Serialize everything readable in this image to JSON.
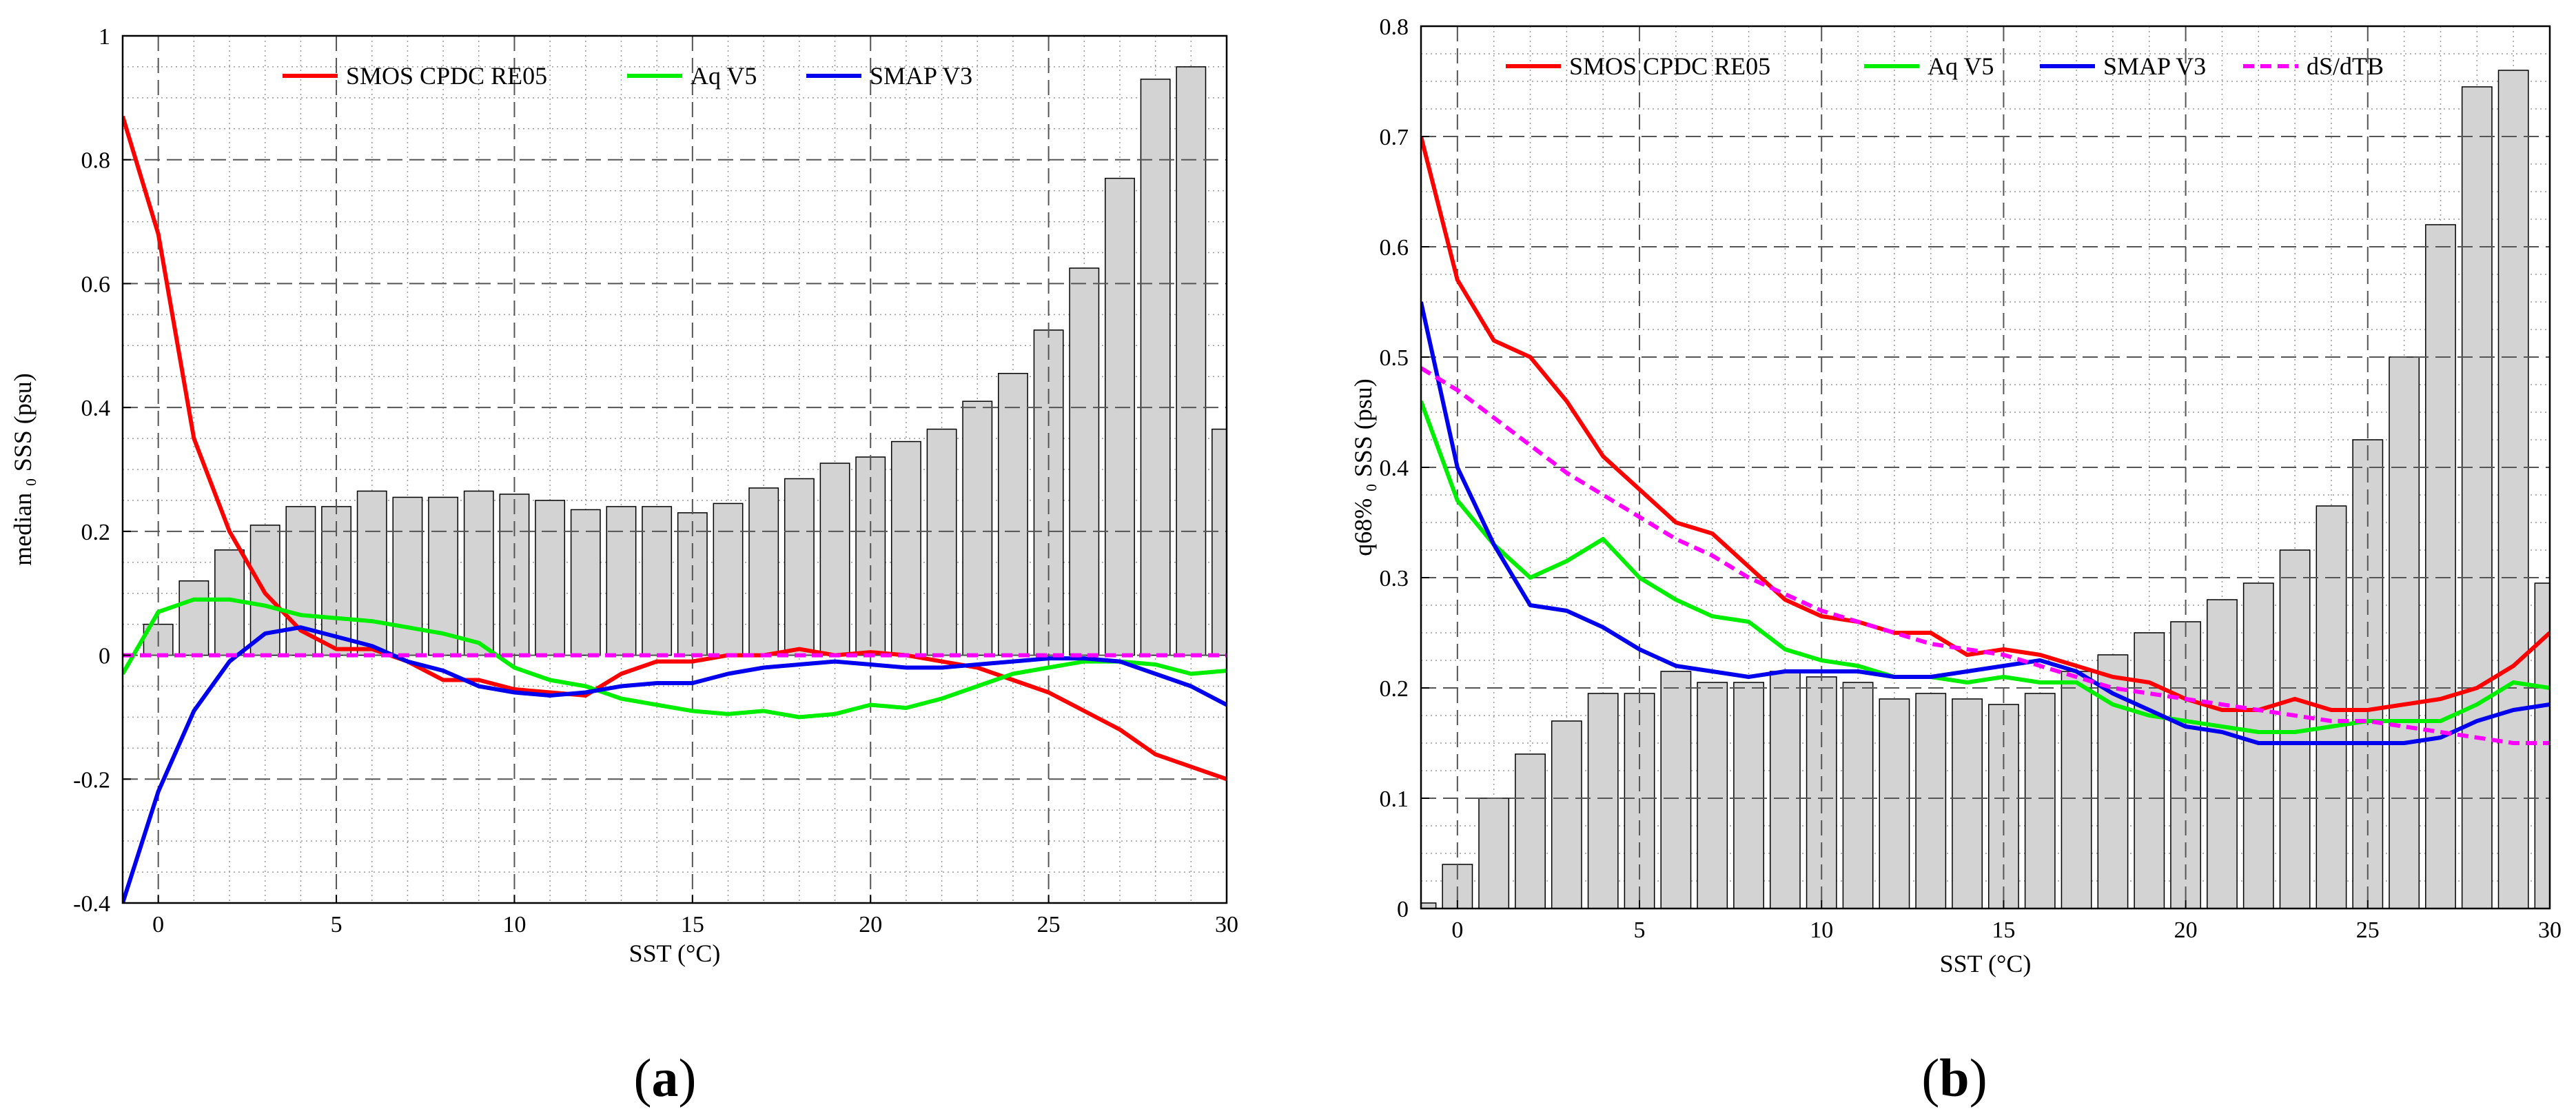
{
  "chart_data": [
    {
      "id": "a",
      "type": "bar+line",
      "panel_label": "(a)",
      "xlabel": "SST (°C)",
      "ylabel": "median ₀ SSS (psu)",
      "xlim": [
        -1,
        30
      ],
      "ylim": [
        -0.4,
        1.0
      ],
      "xticks": [
        0,
        5,
        10,
        15,
        20,
        25,
        30
      ],
      "yticks": [
        -0.4,
        -0.2,
        0,
        0.2,
        0.4,
        0.6,
        0.8,
        1
      ],
      "ytick_labels": [
        "-0.4",
        "-0.2",
        "0",
        "0.2",
        "0.4",
        "0.6",
        "0.8",
        "1"
      ],
      "legend": [
        "SMOS CPDC RE05",
        "Aq V5",
        "SMAP V3"
      ],
      "bars": {
        "x": [
          0,
          1,
          2,
          3,
          4,
          5,
          6,
          7,
          8,
          9,
          10,
          11,
          12,
          13,
          14,
          15,
          16,
          17,
          18,
          19,
          20,
          21,
          22,
          23,
          24,
          25,
          26,
          27,
          28,
          29,
          30
        ],
        "values": [
          0.05,
          0.12,
          0.17,
          0.21,
          0.24,
          0.24,
          0.265,
          0.255,
          0.255,
          0.265,
          0.26,
          0.25,
          0.235,
          0.24,
          0.24,
          0.23,
          0.245,
          0.27,
          0.285,
          0.31,
          0.32,
          0.345,
          0.365,
          0.41,
          0.455,
          0.525,
          0.625,
          0.77,
          0.93,
          0.95,
          0.365
        ]
      },
      "series": [
        {
          "name": "SMOS CPDC RE05",
          "color": "#ff0000",
          "x": [
            -1,
            0,
            1,
            2,
            3,
            4,
            5,
            6,
            7,
            8,
            9,
            10,
            11,
            12,
            13,
            14,
            15,
            16,
            17,
            18,
            19,
            20,
            21,
            22,
            23,
            24,
            25,
            26,
            27,
            28,
            29,
            30
          ],
          "values": [
            0.87,
            0.68,
            0.35,
            0.2,
            0.1,
            0.04,
            0.01,
            0.01,
            -0.01,
            -0.04,
            -0.04,
            -0.055,
            -0.06,
            -0.065,
            -0.03,
            -0.01,
            -0.01,
            0.0,
            0.0,
            0.01,
            0.0,
            0.005,
            0.0,
            -0.01,
            -0.02,
            -0.04,
            -0.06,
            -0.09,
            -0.12,
            -0.16,
            -0.18,
            -0.2
          ]
        },
        {
          "name": "Aq V5",
          "color": "#00ee00",
          "x": [
            -1,
            0,
            1,
            2,
            3,
            4,
            5,
            6,
            7,
            8,
            9,
            10,
            11,
            12,
            13,
            14,
            15,
            16,
            17,
            18,
            19,
            20,
            21,
            22,
            23,
            24,
            25,
            26,
            27,
            28,
            29,
            30
          ],
          "values": [
            -0.03,
            0.07,
            0.09,
            0.09,
            0.08,
            0.065,
            0.06,
            0.055,
            0.045,
            0.035,
            0.02,
            -0.02,
            -0.04,
            -0.05,
            -0.07,
            -0.08,
            -0.09,
            -0.095,
            -0.09,
            -0.1,
            -0.095,
            -0.08,
            -0.085,
            -0.07,
            -0.05,
            -0.03,
            -0.02,
            -0.01,
            -0.01,
            -0.015,
            -0.03,
            -0.025
          ]
        },
        {
          "name": "SMAP V3",
          "color": "#0000ee",
          "x": [
            -1,
            0,
            1,
            2,
            3,
            4,
            5,
            6,
            7,
            8,
            9,
            10,
            11,
            12,
            13,
            14,
            15,
            16,
            17,
            18,
            19,
            20,
            21,
            22,
            23,
            24,
            25,
            26,
            27,
            28,
            29,
            30
          ],
          "values": [
            -0.4,
            -0.22,
            -0.09,
            -0.01,
            0.035,
            0.045,
            0.03,
            0.015,
            -0.01,
            -0.025,
            -0.05,
            -0.06,
            -0.065,
            -0.06,
            -0.05,
            -0.045,
            -0.045,
            -0.03,
            -0.02,
            -0.015,
            -0.01,
            -0.015,
            -0.02,
            -0.02,
            -0.015,
            -0.01,
            -0.005,
            -0.005,
            -0.01,
            -0.03,
            -0.05,
            -0.08
          ]
        },
        {
          "name": "zero",
          "color": "#ff00ff",
          "dashed": true,
          "legend": false,
          "x": [
            -1,
            30
          ],
          "values": [
            0,
            0
          ]
        }
      ]
    },
    {
      "id": "b",
      "type": "bar+line",
      "panel_label": "(b)",
      "xlabel": "SST (°C)",
      "ylabel": "q68% ₀ SSS (psu)",
      "xlim": [
        -1,
        30
      ],
      "ylim": [
        0,
        0.8
      ],
      "xticks": [
        0,
        5,
        10,
        15,
        20,
        25,
        30
      ],
      "yticks": [
        0,
        0.1,
        0.2,
        0.3,
        0.4,
        0.5,
        0.6,
        0.7,
        0.8
      ],
      "ytick_labels": [
        "0",
        "0.1",
        "0.2",
        "0.3",
        "0.4",
        "0.5",
        "0.6",
        "0.7",
        "0.8"
      ],
      "legend": [
        "SMOS CPDC RE05",
        "Aq V5",
        "SMAP V3",
        "dS/dTB"
      ],
      "bars": {
        "x": [
          -1,
          0,
          1,
          2,
          3,
          4,
          5,
          6,
          7,
          8,
          9,
          10,
          11,
          12,
          13,
          14,
          15,
          16,
          17,
          18,
          19,
          20,
          21,
          22,
          23,
          24,
          25,
          26,
          27,
          28,
          29,
          30
        ],
        "values": [
          0.005,
          0.04,
          0.1,
          0.14,
          0.17,
          0.195,
          0.195,
          0.215,
          0.205,
          0.205,
          0.215,
          0.21,
          0.205,
          0.19,
          0.195,
          0.19,
          0.185,
          0.195,
          0.215,
          0.23,
          0.25,
          0.26,
          0.28,
          0.295,
          0.325,
          0.365,
          0.425,
          0.5,
          0.62,
          0.745,
          0.76,
          0.295
        ]
      },
      "series": [
        {
          "name": "SMOS CPDC RE05",
          "color": "#ff0000",
          "x": [
            -1,
            0,
            1,
            2,
            3,
            4,
            5,
            6,
            7,
            8,
            9,
            10,
            11,
            12,
            13,
            14,
            15,
            16,
            17,
            18,
            19,
            20,
            21,
            22,
            23,
            24,
            25,
            26,
            27,
            28,
            29,
            30
          ],
          "values": [
            0.7,
            0.57,
            0.515,
            0.5,
            0.46,
            0.41,
            0.38,
            0.35,
            0.34,
            0.31,
            0.28,
            0.265,
            0.26,
            0.25,
            0.25,
            0.23,
            0.235,
            0.23,
            0.22,
            0.21,
            0.205,
            0.19,
            0.18,
            0.18,
            0.19,
            0.18,
            0.18,
            0.185,
            0.19,
            0.2,
            0.22,
            0.25
          ]
        },
        {
          "name": "Aq V5",
          "color": "#00ee00",
          "x": [
            -1,
            0,
            1,
            2,
            3,
            4,
            5,
            6,
            7,
            8,
            9,
            10,
            11,
            12,
            13,
            14,
            15,
            16,
            17,
            18,
            19,
            20,
            21,
            22,
            23,
            24,
            25,
            26,
            27,
            28,
            29,
            30
          ],
          "values": [
            0.46,
            0.37,
            0.33,
            0.3,
            0.315,
            0.335,
            0.3,
            0.28,
            0.265,
            0.26,
            0.235,
            0.225,
            0.22,
            0.21,
            0.21,
            0.205,
            0.21,
            0.205,
            0.205,
            0.185,
            0.175,
            0.17,
            0.165,
            0.16,
            0.16,
            0.165,
            0.17,
            0.17,
            0.17,
            0.185,
            0.205,
            0.2
          ]
        },
        {
          "name": "SMAP V3",
          "color": "#0000ee",
          "x": [
            -1,
            0,
            1,
            2,
            3,
            4,
            5,
            6,
            7,
            8,
            9,
            10,
            11,
            12,
            13,
            14,
            15,
            16,
            17,
            18,
            19,
            20,
            21,
            22,
            23,
            24,
            25,
            26,
            27,
            28,
            29,
            30
          ],
          "values": [
            0.55,
            0.4,
            0.33,
            0.275,
            0.27,
            0.255,
            0.235,
            0.22,
            0.215,
            0.21,
            0.215,
            0.215,
            0.215,
            0.21,
            0.21,
            0.215,
            0.22,
            0.225,
            0.215,
            0.195,
            0.18,
            0.165,
            0.16,
            0.15,
            0.15,
            0.15,
            0.15,
            0.15,
            0.155,
            0.17,
            0.18,
            0.185
          ]
        },
        {
          "name": "dS/dTB",
          "color": "#ff00ff",
          "dashed": true,
          "x": [
            -1,
            0,
            1,
            2,
            3,
            4,
            5,
            6,
            7,
            8,
            9,
            10,
            11,
            12,
            13,
            14,
            15,
            16,
            17,
            18,
            19,
            20,
            21,
            22,
            23,
            24,
            25,
            26,
            27,
            28,
            29,
            30
          ],
          "values": [
            0.49,
            0.47,
            0.445,
            0.42,
            0.395,
            0.375,
            0.355,
            0.335,
            0.32,
            0.3,
            0.285,
            0.27,
            0.26,
            0.25,
            0.24,
            0.235,
            0.23,
            0.22,
            0.21,
            0.2,
            0.195,
            0.19,
            0.185,
            0.18,
            0.175,
            0.17,
            0.17,
            0.165,
            0.16,
            0.155,
            0.15,
            0.15
          ]
        }
      ]
    }
  ]
}
